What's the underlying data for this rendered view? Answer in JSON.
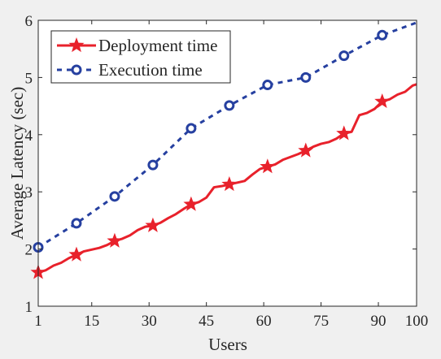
{
  "chart_data": {
    "type": "line",
    "title": "",
    "xlabel": "Users",
    "ylabel": "Average Latency (sec)",
    "xlim": [
      1,
      100
    ],
    "ylim": [
      1,
      6
    ],
    "xticks": [
      1,
      15,
      30,
      45,
      60,
      75,
      90,
      100
    ],
    "yticks": [
      1,
      2,
      3,
      4,
      5,
      6
    ],
    "grid": false,
    "legend_position": "top-left",
    "background": "#f0f0f0",
    "series": [
      {
        "name": "Deployment time",
        "color": "#e8212b",
        "line_style": "solid",
        "marker": "star",
        "x": [
          1,
          3,
          5,
          7,
          9,
          11,
          13,
          15,
          17,
          19,
          21,
          23,
          25,
          27,
          29,
          31,
          33,
          35,
          37,
          39,
          41,
          43,
          45,
          47,
          49,
          51,
          53,
          55,
          57,
          59,
          61,
          63,
          65,
          67,
          69,
          71,
          73,
          75,
          77,
          79,
          81,
          83,
          85,
          87,
          89,
          91,
          93,
          95,
          97,
          99,
          100
        ],
        "y": [
          1.59,
          1.63,
          1.71,
          1.76,
          1.84,
          1.9,
          1.96,
          1.99,
          2.02,
          2.07,
          2.14,
          2.18,
          2.24,
          2.33,
          2.39,
          2.41,
          2.46,
          2.54,
          2.61,
          2.7,
          2.78,
          2.82,
          2.9,
          3.08,
          3.1,
          3.13,
          3.16,
          3.19,
          3.3,
          3.4,
          3.44,
          3.48,
          3.56,
          3.61,
          3.66,
          3.72,
          3.79,
          3.84,
          3.87,
          3.93,
          4.02,
          4.05,
          4.34,
          4.38,
          4.45,
          4.58,
          4.62,
          4.7,
          4.75,
          4.86,
          4.88
        ],
        "marker_x": [
          1,
          11,
          21,
          31,
          41,
          51,
          61,
          71,
          81,
          91
        ],
        "marker_y": [
          1.59,
          1.9,
          2.14,
          2.41,
          2.78,
          3.13,
          3.44,
          3.72,
          4.02,
          4.58
        ]
      },
      {
        "name": "Execution time",
        "color": "#2640a0",
        "line_style": "dashed",
        "marker": "circle",
        "x": [
          1,
          11,
          21,
          31,
          41,
          51,
          61,
          71,
          81,
          91,
          100
        ],
        "y": [
          2.03,
          2.45,
          2.92,
          3.47,
          4.11,
          4.51,
          4.87,
          5.0,
          5.38,
          5.74,
          5.96
        ],
        "marker_x": [
          1,
          11,
          21,
          31,
          41,
          51,
          61,
          71,
          81,
          91
        ],
        "marker_y": [
          2.03,
          2.45,
          2.92,
          3.47,
          4.11,
          4.51,
          4.87,
          5.0,
          5.38,
          5.74
        ]
      }
    ]
  }
}
